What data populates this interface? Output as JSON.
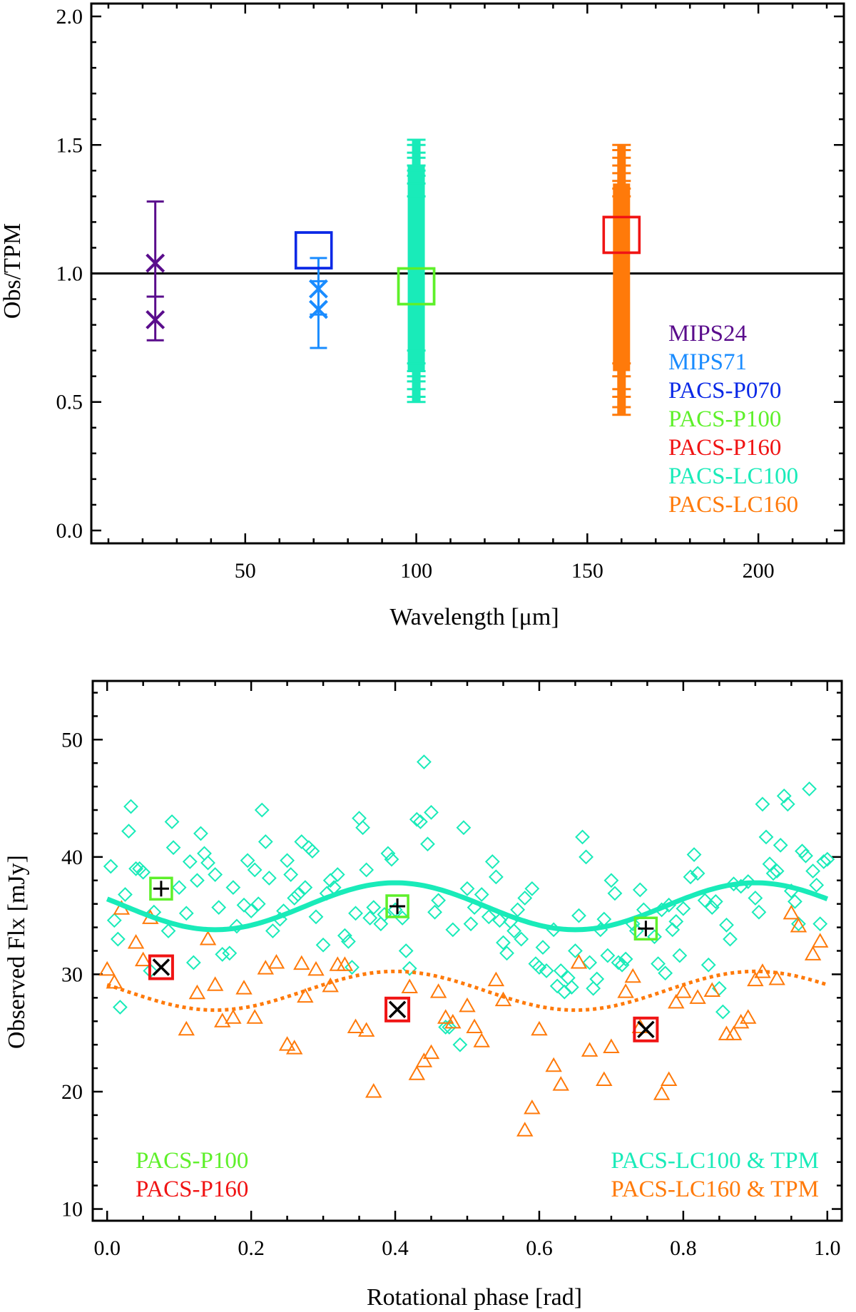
{
  "chart_data": [
    {
      "id": "top",
      "type": "scatter",
      "xlabel": "Wavelength [μm]",
      "ylabel": "Obs/TPM",
      "xlim": [
        5,
        225
      ],
      "ylim": [
        -0.05,
        2.05
      ],
      "xticks": [
        50,
        100,
        150,
        200
      ],
      "xtick_labels": [
        "50",
        "100",
        "150",
        "200"
      ],
      "yticks": [
        0.0,
        0.5,
        1.0,
        1.5,
        2.0
      ],
      "ytick_labels": [
        "0.0",
        "0.5",
        "1.0",
        "1.5",
        "2.0"
      ],
      "reference_line": 1.0,
      "colors": {
        "MIPS24": "#5a0d8c",
        "MIPS71": "#1a8cff",
        "PACS-P070": "#0a28e6",
        "PACS-P100": "#5ef02a",
        "PACS-P160": "#f01414",
        "PACS-LC100": "#19ebb9",
        "PACS-LC160": "#ff7a0a"
      },
      "series": [
        {
          "name": "MIPS24",
          "marker": "x",
          "points": [
            {
              "x": 23.7,
              "y": 1.04,
              "err_low": 0.91,
              "err_high": 1.28
            },
            {
              "x": 23.7,
              "y": 0.82,
              "err_low": 0.74,
              "err_high": 0.91
            }
          ]
        },
        {
          "name": "MIPS71",
          "marker": "x",
          "points": [
            {
              "x": 71.4,
              "y": 0.94,
              "err_low": 0.84,
              "err_high": 1.06
            },
            {
              "x": 71.4,
              "y": 0.86,
              "err_low": 0.71,
              "err_high": 0.97
            }
          ]
        },
        {
          "name": "PACS-P070",
          "marker": "square",
          "points": [
            {
              "x": 70.0,
              "y": 1.09
            }
          ]
        },
        {
          "name": "PACS-P100",
          "marker": "square",
          "points": [
            {
              "x": 100.0,
              "y": 0.95
            }
          ]
        },
        {
          "name": "PACS-P160",
          "marker": "square",
          "points": [
            {
              "x": 160.0,
              "y": 1.15
            }
          ]
        },
        {
          "name": "PACS-LC100",
          "marker": "errorbar-band",
          "x": 100.0,
          "band": [
            0.62,
            1.42
          ],
          "errbar_caps": [
            0.5,
            0.52,
            0.55,
            0.58,
            0.6,
            0.62,
            0.65,
            0.7,
            1.3,
            1.35,
            1.38,
            1.4,
            1.42,
            1.45,
            1.47,
            1.5,
            1.52
          ]
        },
        {
          "name": "PACS-LC160",
          "marker": "errorbar-band",
          "x": 160.0,
          "band": [
            0.62,
            1.35
          ],
          "errbar_caps": [
            0.45,
            0.48,
            0.52,
            0.55,
            0.6,
            0.65,
            1.3,
            1.33,
            1.36,
            1.39,
            1.42,
            1.45,
            1.48,
            1.5
          ]
        }
      ],
      "legend": [
        "MIPS24",
        "MIPS71",
        "PACS-P070",
        "PACS-P100",
        "PACS-P160",
        "PACS-LC100",
        "PACS-LC160"
      ],
      "legend_position": "lower-right"
    },
    {
      "id": "bottom",
      "type": "scatter",
      "xlabel": "Rotational phase [rad]",
      "ylabel": "Observed Flx [mJy]",
      "xlim": [
        -0.02,
        1.02
      ],
      "ylim": [
        9,
        55
      ],
      "xticks": [
        0.0,
        0.2,
        0.4,
        0.6,
        0.8,
        1.0
      ],
      "xtick_labels": [
        "0.0",
        "0.2",
        "0.4",
        "0.6",
        "0.8",
        "1.0"
      ],
      "yticks": [
        10,
        20,
        30,
        40,
        50
      ],
      "ytick_labels": [
        "10",
        "20",
        "30",
        "40",
        "50"
      ],
      "tpm_lc100": {
        "mean": 35.8,
        "amp": 2.0,
        "period": 0.5,
        "phase0": 0.15
      },
      "tpm_lc160": {
        "mean": 28.6,
        "amp": 1.65,
        "period": 0.5,
        "phase0": 0.15
      },
      "p100_points": [
        {
          "x": 0.075,
          "y": 37.3
        },
        {
          "x": 0.403,
          "y": 35.8
        },
        {
          "x": 0.748,
          "y": 33.9
        }
      ],
      "p160_points": [
        {
          "x": 0.075,
          "y": 30.6
        },
        {
          "x": 0.403,
          "y": 27.0
        },
        {
          "x": 0.748,
          "y": 25.3
        }
      ],
      "lc100_scatter": [
        [
          0.005,
          39.2
        ],
        [
          0.01,
          34.6
        ],
        [
          0.015,
          33.0
        ],
        [
          0.018,
          27.2
        ],
        [
          0.025,
          36.8
        ],
        [
          0.03,
          42.2
        ],
        [
          0.033,
          44.3
        ],
        [
          0.04,
          39.0
        ],
        [
          0.045,
          39.0
        ],
        [
          0.05,
          38.7
        ],
        [
          0.06,
          30.3
        ],
        [
          0.065,
          35.3
        ],
        [
          0.085,
          33.7
        ],
        [
          0.09,
          43.0
        ],
        [
          0.092,
          40.8
        ],
        [
          0.1,
          37.4
        ],
        [
          0.11,
          35.2
        ],
        [
          0.115,
          39.6
        ],
        [
          0.12,
          31.0
        ],
        [
          0.125,
          38.0
        ],
        [
          0.13,
          42.0
        ],
        [
          0.135,
          40.3
        ],
        [
          0.14,
          39.5
        ],
        [
          0.15,
          38.5
        ],
        [
          0.155,
          35.7
        ],
        [
          0.16,
          31.7
        ],
        [
          0.17,
          31.8
        ],
        [
          0.175,
          37.4
        ],
        [
          0.18,
          34.1
        ],
        [
          0.19,
          35.9
        ],
        [
          0.195,
          39.7
        ],
        [
          0.2,
          35.4
        ],
        [
          0.205,
          38.9
        ],
        [
          0.21,
          36.0
        ],
        [
          0.215,
          44.0
        ],
        [
          0.22,
          41.3
        ],
        [
          0.225,
          38.2
        ],
        [
          0.23,
          33.7
        ],
        [
          0.24,
          34.7
        ],
        [
          0.245,
          35.4
        ],
        [
          0.25,
          39.7
        ],
        [
          0.255,
          38.5
        ],
        [
          0.26,
          36.5
        ],
        [
          0.265,
          36.8
        ],
        [
          0.27,
          41.3
        ],
        [
          0.275,
          37.4
        ],
        [
          0.28,
          40.8
        ],
        [
          0.285,
          40.5
        ],
        [
          0.29,
          34.9
        ],
        [
          0.3,
          32.5
        ],
        [
          0.305,
          36.9
        ],
        [
          0.31,
          38.0
        ],
        [
          0.315,
          37.4
        ],
        [
          0.32,
          38.5
        ],
        [
          0.33,
          33.3
        ],
        [
          0.335,
          32.8
        ],
        [
          0.34,
          30.6
        ],
        [
          0.345,
          35.2
        ],
        [
          0.35,
          43.3
        ],
        [
          0.355,
          42.5
        ],
        [
          0.36,
          38.9
        ],
        [
          0.365,
          34.8
        ],
        [
          0.37,
          35.7
        ],
        [
          0.38,
          34.3
        ],
        [
          0.385,
          35.1
        ],
        [
          0.39,
          40.3
        ],
        [
          0.395,
          39.8
        ],
        [
          0.4,
          35.5
        ],
        [
          0.41,
          34.8
        ],
        [
          0.415,
          32.0
        ],
        [
          0.42,
          30.5
        ],
        [
          0.43,
          43.2
        ],
        [
          0.435,
          43.0
        ],
        [
          0.44,
          48.1
        ],
        [
          0.445,
          41.1
        ],
        [
          0.45,
          43.8
        ],
        [
          0.455,
          35.3
        ],
        [
          0.46,
          36.3
        ],
        [
          0.47,
          25.5
        ],
        [
          0.475,
          25.5
        ],
        [
          0.48,
          33.8
        ],
        [
          0.49,
          24.0
        ],
        [
          0.495,
          42.5
        ],
        [
          0.5,
          37.3
        ],
        [
          0.505,
          34.3
        ],
        [
          0.51,
          35.7
        ],
        [
          0.52,
          36.8
        ],
        [
          0.53,
          34.9
        ],
        [
          0.535,
          39.6
        ],
        [
          0.54,
          38.3
        ],
        [
          0.545,
          34.6
        ],
        [
          0.55,
          32.7
        ],
        [
          0.555,
          31.8
        ],
        [
          0.56,
          34.5
        ],
        [
          0.565,
          33.7
        ],
        [
          0.57,
          35.5
        ],
        [
          0.575,
          33.0
        ],
        [
          0.58,
          36.5
        ],
        [
          0.59,
          37.3
        ],
        [
          0.595,
          30.9
        ],
        [
          0.6,
          30.6
        ],
        [
          0.605,
          32.3
        ],
        [
          0.61,
          30.3
        ],
        [
          0.62,
          33.8
        ],
        [
          0.625,
          29.0
        ],
        [
          0.63,
          30.3
        ],
        [
          0.635,
          28.5
        ],
        [
          0.64,
          29.7
        ],
        [
          0.645,
          28.9
        ],
        [
          0.65,
          32.0
        ],
        [
          0.655,
          35.0
        ],
        [
          0.66,
          41.7
        ],
        [
          0.665,
          40.0
        ],
        [
          0.67,
          31.0
        ],
        [
          0.675,
          28.8
        ],
        [
          0.68,
          29.6
        ],
        [
          0.685,
          33.8
        ],
        [
          0.69,
          34.7
        ],
        [
          0.695,
          31.6
        ],
        [
          0.7,
          38.0
        ],
        [
          0.705,
          36.9
        ],
        [
          0.71,
          31.0
        ],
        [
          0.715,
          30.8
        ],
        [
          0.72,
          31.3
        ],
        [
          0.73,
          34.3
        ],
        [
          0.735,
          33.7
        ],
        [
          0.74,
          37.2
        ],
        [
          0.745,
          35.5
        ],
        [
          0.76,
          33.2
        ],
        [
          0.765,
          30.9
        ],
        [
          0.77,
          35.5
        ],
        [
          0.775,
          30.1
        ],
        [
          0.78,
          35.9
        ],
        [
          0.785,
          33.8
        ],
        [
          0.79,
          34.5
        ],
        [
          0.795,
          31.6
        ],
        [
          0.8,
          35.6
        ],
        [
          0.81,
          38.3
        ],
        [
          0.815,
          40.2
        ],
        [
          0.82,
          38.6
        ],
        [
          0.83,
          36.3
        ],
        [
          0.835,
          30.8
        ],
        [
          0.84,
          35.7
        ],
        [
          0.845,
          36.2
        ],
        [
          0.85,
          28.8
        ],
        [
          0.855,
          26.8
        ],
        [
          0.86,
          34.2
        ],
        [
          0.865,
          33.0
        ],
        [
          0.87,
          37.7
        ],
        [
          0.88,
          37.5
        ],
        [
          0.89,
          37.9
        ],
        [
          0.9,
          36.5
        ],
        [
          0.905,
          35.3
        ],
        [
          0.91,
          44.5
        ],
        [
          0.915,
          41.7
        ],
        [
          0.92,
          39.4
        ],
        [
          0.925,
          38.6
        ],
        [
          0.93,
          38.8
        ],
        [
          0.935,
          41.0
        ],
        [
          0.94,
          45.2
        ],
        [
          0.945,
          44.5
        ],
        [
          0.95,
          37.1
        ],
        [
          0.955,
          36.2
        ],
        [
          0.96,
          34.3
        ],
        [
          0.965,
          40.5
        ],
        [
          0.97,
          40.1
        ],
        [
          0.975,
          45.8
        ],
        [
          0.98,
          38.8
        ],
        [
          0.985,
          37.6
        ],
        [
          0.99,
          34.3
        ],
        [
          0.995,
          39.6
        ],
        [
          1.0,
          39.8
        ]
      ],
      "lc160_scatter": [
        [
          0.0,
          30.4
        ],
        [
          0.01,
          29.3
        ],
        [
          0.02,
          35.6
        ],
        [
          0.04,
          32.7
        ],
        [
          0.05,
          31.2
        ],
        [
          0.06,
          34.8
        ],
        [
          0.11,
          25.3
        ],
        [
          0.125,
          28.4
        ],
        [
          0.14,
          33.0
        ],
        [
          0.15,
          29.1
        ],
        [
          0.16,
          26.0
        ],
        [
          0.175,
          26.3
        ],
        [
          0.19,
          28.8
        ],
        [
          0.205,
          26.3
        ],
        [
          0.22,
          30.5
        ],
        [
          0.235,
          31.0
        ],
        [
          0.25,
          24.0
        ],
        [
          0.26,
          23.7
        ],
        [
          0.27,
          30.9
        ],
        [
          0.275,
          28.1
        ],
        [
          0.29,
          30.4
        ],
        [
          0.31,
          29.0
        ],
        [
          0.32,
          30.8
        ],
        [
          0.33,
          30.8
        ],
        [
          0.345,
          25.5
        ],
        [
          0.36,
          25.2
        ],
        [
          0.37,
          20.0
        ],
        [
          0.42,
          28.9
        ],
        [
          0.43,
          21.5
        ],
        [
          0.44,
          22.6
        ],
        [
          0.45,
          23.3
        ],
        [
          0.46,
          28.5
        ],
        [
          0.47,
          26.3
        ],
        [
          0.48,
          25.9
        ],
        [
          0.5,
          27.3
        ],
        [
          0.51,
          25.5
        ],
        [
          0.52,
          24.3
        ],
        [
          0.54,
          29.5
        ],
        [
          0.55,
          27.8
        ],
        [
          0.58,
          16.7
        ],
        [
          0.59,
          18.6
        ],
        [
          0.6,
          25.3
        ],
        [
          0.62,
          22.2
        ],
        [
          0.63,
          20.6
        ],
        [
          0.655,
          31.0
        ],
        [
          0.67,
          23.5
        ],
        [
          0.69,
          21.0
        ],
        [
          0.7,
          23.8
        ],
        [
          0.72,
          28.5
        ],
        [
          0.73,
          29.8
        ],
        [
          0.74,
          25.5
        ],
        [
          0.77,
          19.8
        ],
        [
          0.78,
          21.0
        ],
        [
          0.79,
          27.6
        ],
        [
          0.8,
          28.5
        ],
        [
          0.82,
          28.0
        ],
        [
          0.84,
          28.6
        ],
        [
          0.86,
          24.9
        ],
        [
          0.87,
          24.9
        ],
        [
          0.88,
          25.9
        ],
        [
          0.89,
          26.3
        ],
        [
          0.9,
          29.5
        ],
        [
          0.91,
          30.2
        ],
        [
          0.93,
          29.6
        ],
        [
          0.95,
          35.2
        ],
        [
          0.96,
          34.1
        ],
        [
          0.98,
          31.7
        ],
        [
          0.99,
          32.8
        ]
      ],
      "legend_left": [
        "PACS-P100",
        "PACS-P160"
      ],
      "legend_right": [
        "PACS-LC100 & TPM",
        "PACS-LC160 & TPM"
      ],
      "colors": {
        "PACS-P100": "#5ef02a",
        "PACS-P160": "#f01414",
        "PACS-LC100": "#19ebb9",
        "PACS-LC160": "#ff7a0a",
        "marker_cross": "#000000"
      }
    }
  ]
}
